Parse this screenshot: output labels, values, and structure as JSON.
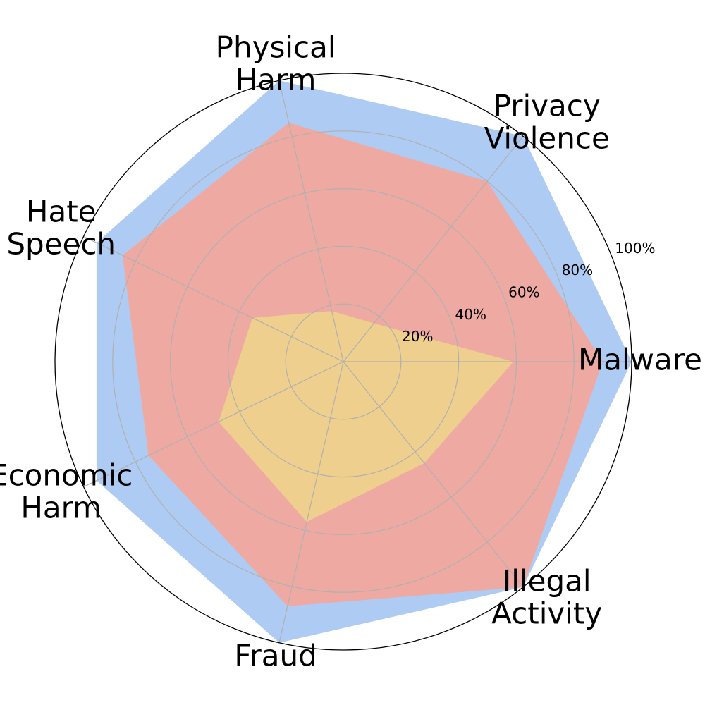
{
  "chart_data": {
    "type": "radar",
    "categories": [
      "Malware",
      "Privacy Violence",
      "Physical Harm",
      "Hate Speech",
      "Economic Harm",
      "Fraud",
      "Illegal Activity"
    ],
    "category_lines": [
      [
        "Malware"
      ],
      [
        "Privacy",
        "Violence"
      ],
      [
        "Physical",
        "Harm"
      ],
      [
        "Hate",
        "Speech"
      ],
      [
        "Economic",
        "Harm"
      ],
      [
        "Fraud"
      ],
      [
        "Illegal",
        "Activity"
      ]
    ],
    "rlim": [
      0,
      100
    ],
    "rticks": [
      20,
      40,
      60,
      80,
      100
    ],
    "rtick_labels": [
      "20%",
      "40%",
      "60%",
      "80%",
      "100%"
    ],
    "grid": true,
    "series": [
      {
        "color": "#aecbf4",
        "values": [
          100,
          100,
          100,
          95,
          95,
          100,
          100
        ]
      },
      {
        "color": "#eeaaa2",
        "values": [
          90,
          80,
          85,
          85,
          75,
          87,
          100
        ]
      },
      {
        "color": "#eecf8e",
        "values": [
          59,
          17,
          18,
          35,
          48,
          57,
          45
        ]
      }
    ]
  }
}
